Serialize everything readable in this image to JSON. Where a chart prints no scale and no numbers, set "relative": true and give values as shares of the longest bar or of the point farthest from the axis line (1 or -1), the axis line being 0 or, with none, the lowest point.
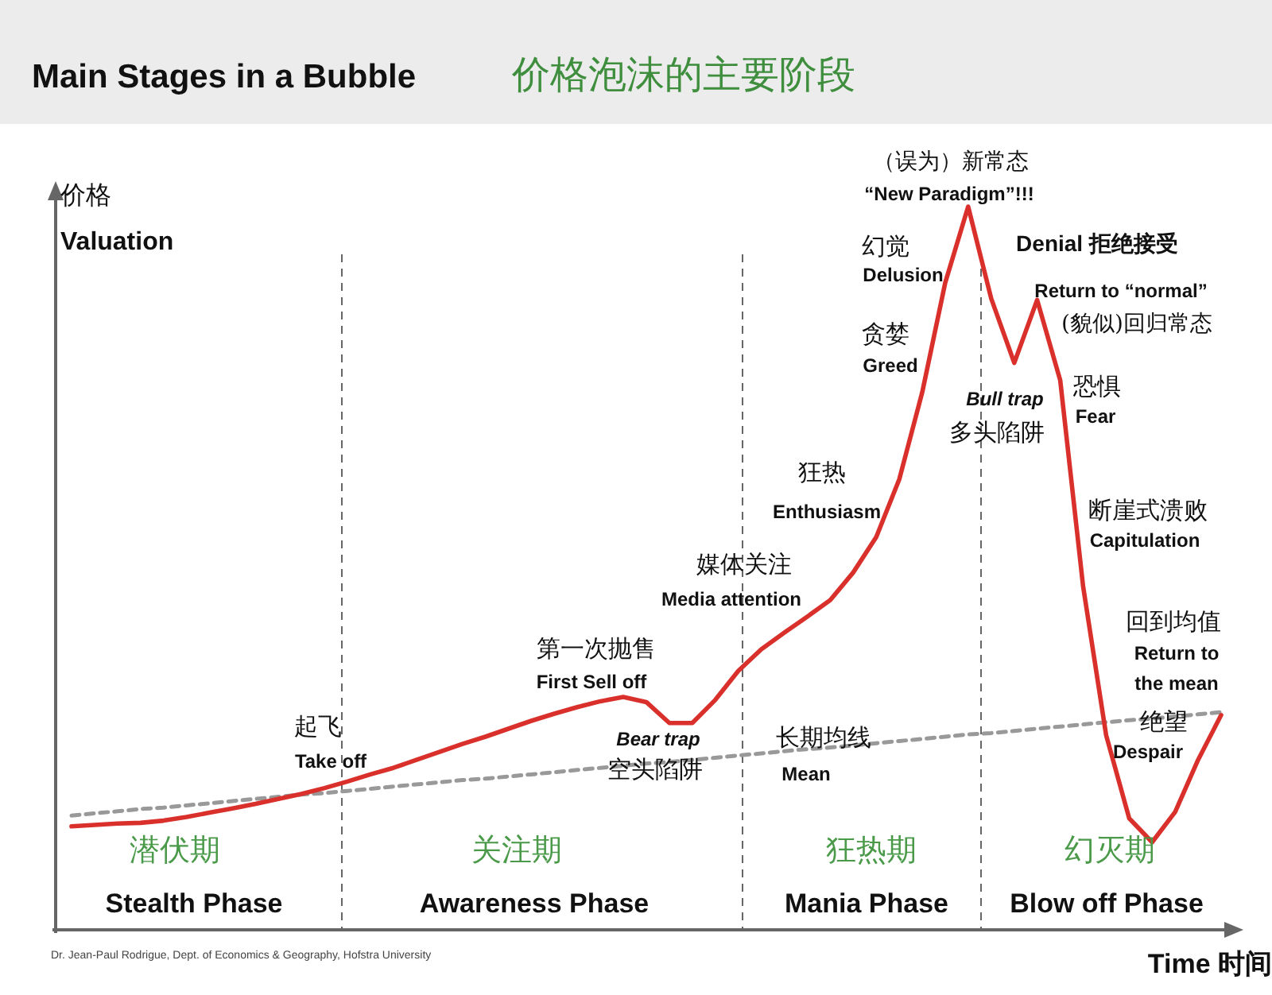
{
  "chart_data": {
    "type": "line",
    "title": "Main Stages in a Bubble",
    "subtitle": "价格泡沫的主要阶段",
    "xlabel": "Time 时间",
    "ylabel": "价格 Valuation",
    "relative": true,
    "categories": [
      null,
      null,
      null,
      null,
      null,
      null,
      null,
      null,
      null,
      null,
      null,
      null,
      null,
      null,
      null,
      null,
      null,
      null,
      null,
      null,
      null,
      null,
      null,
      null,
      null,
      null,
      null,
      null,
      null,
      null,
      null,
      null,
      null,
      null,
      null,
      null,
      null,
      null,
      null,
      null,
      null,
      null,
      null,
      null,
      null,
      null,
      null,
      null,
      null,
      null,
      null
    ],
    "series": [
      {
        "color": "#d9302c",
        "values": [
          0.143,
          0.145,
          0.147,
          0.148,
          0.151,
          0.156,
          0.162,
          0.168,
          0.174,
          0.181,
          0.188,
          0.196,
          0.205,
          0.215,
          0.224,
          0.235,
          0.246,
          0.257,
          0.267,
          0.278,
          0.289,
          0.299,
          0.308,
          0.316,
          0.322,
          0.315,
          0.286,
          0.286,
          0.318,
          0.358,
          0.388,
          0.411,
          0.433,
          0.456,
          0.494,
          0.543,
          0.623,
          0.743,
          0.895,
          1,
          0.873,
          0.784,
          0.871,
          0.76,
          0.475,
          0.269,
          0.154,
          0.121,
          0.163,
          0.235,
          0.297
        ]
      },
      {
        "type": "line",
        "line_style": "dashed",
        "color": "#999999",
        "values": [
          0.158,
          0.161,
          0.164,
          0.167,
          0.169,
          0.172,
          0.175,
          0.178,
          0.181,
          0.184,
          0.187,
          0.189,
          0.192,
          0.195,
          0.198,
          0.201,
          0.204,
          0.207,
          0.209,
          0.212,
          0.215,
          0.218,
          0.221,
          0.224,
          0.227,
          0.23,
          0.232,
          0.235,
          0.238,
          0.241,
          0.244,
          0.247,
          0.25,
          0.252,
          0.255,
          0.258,
          0.261,
          0.264,
          0.267,
          0.27,
          0.272,
          0.275,
          0.278,
          0.281,
          0.284,
          0.287,
          0.29,
          0.292,
          0.295,
          0.298,
          0.301
        ]
      }
    ],
    "annotations": [
      "（误为）新常态",
      "“New Paradigm”!!!",
      "幻觉",
      "Delusion",
      "贪婪",
      "Greed",
      "Denial 拒绝接受",
      "Return to “normal”",
      "(貌似)回归常态",
      "Bull trap",
      "多头陷阱",
      "恐惧",
      "Fear",
      "狂热",
      "Enthusiasm",
      "断崖式溃败",
      "Capitulation",
      "媒体关注",
      "Media attention",
      "回到均值",
      "Return to",
      "the mean",
      "第一次抛售",
      "First Sell off",
      "Bear trap",
      "空头陷阱",
      "长期均线",
      "Mean",
      "绝望",
      "Despair",
      "起飞",
      "Take off",
      "潜伏期",
      "Stealth Phase",
      "关注期",
      "Awareness Phase",
      "狂热期",
      "Mania Phase",
      "幻灭期",
      "Blow off Phase",
      "Dr. Jean-Paul Rodrigue, Dept. of Economics & Geography, Hofstra University"
    ]
  }
}
